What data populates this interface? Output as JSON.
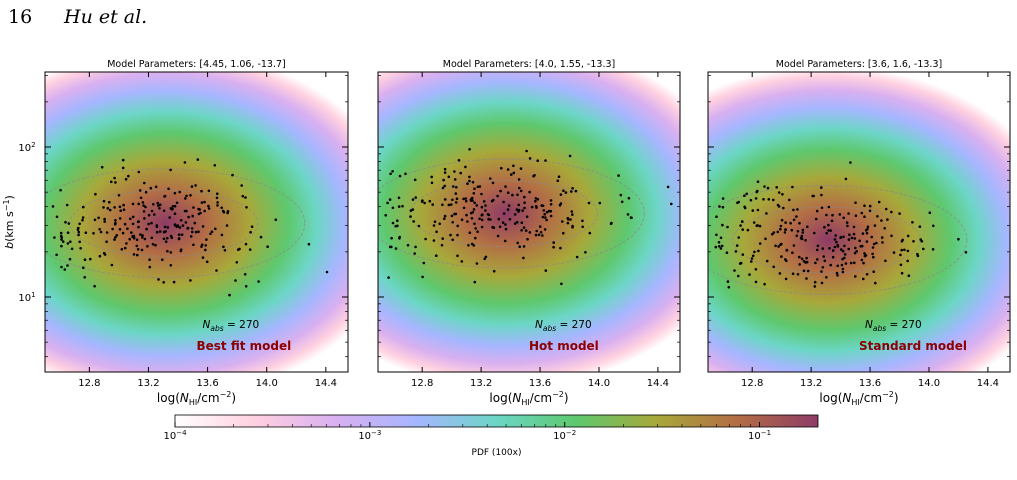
{
  "page": {
    "number": "16",
    "authors": "Hu et al."
  },
  "colorbar": {
    "label": "PDF (100x)",
    "ticks": [
      {
        "base": "10",
        "exp": "−4",
        "value": -4
      },
      {
        "base": "10",
        "exp": "−3",
        "value": -3
      },
      {
        "base": "10",
        "exp": "−2",
        "value": -2
      },
      {
        "base": "10",
        "exp": "−1",
        "value": -1
      }
    ],
    "log_range": [
      -4,
      -0.7
    ],
    "colors": [
      "#ffffff",
      "#ffd0e0",
      "#d9b0f0",
      "#a6b6ff",
      "#6cd6c6",
      "#5ec86e",
      "#a8a83a",
      "#b36d45",
      "#8e3c66"
    ]
  },
  "chart_data": [
    {
      "type": "scatter",
      "title": "Model Parameters: [4.45, 1.06, -13.7]",
      "model_label": "Best fit model",
      "nabs_label": "N_abs = 270",
      "xlabel": "log(N_HI/cm^-2)",
      "ylabel": "b(km s^-1)",
      "xlim": [
        12.5,
        14.55
      ],
      "ylim_log": [
        0.5,
        2.5
      ],
      "xticks": [
        "12.8",
        "13.2",
        "13.6",
        "14.0",
        "14.4"
      ],
      "yticks": [
        "10^1",
        "10^2"
      ],
      "density_center": [
        13.25,
        31
      ],
      "density_peak_b": 31,
      "n_points": 270,
      "seed": 11
    },
    {
      "type": "scatter",
      "title": "Model Parameters: [4.0, 1.55, -13.3]",
      "model_label": "Hot model",
      "nabs_label": "N_abs = 270",
      "xlabel": "log(N_HI/cm^-2)",
      "ylabel": "",
      "xlim": [
        12.5,
        14.55
      ],
      "ylim_log": [
        0.5,
        2.5
      ],
      "xticks": [
        "12.8",
        "13.2",
        "13.6",
        "14.0",
        "14.4"
      ],
      "yticks": [],
      "density_center": [
        13.3,
        36
      ],
      "density_peak_b": 36,
      "n_points": 270,
      "seed": 23
    },
    {
      "type": "scatter",
      "title": "Model Parameters: [3.6, 1.6, -13.3]",
      "model_label": "Standard model",
      "nabs_label": "N_abs = 270",
      "xlabel": "log(N_HI/cm^-2)",
      "ylabel": "",
      "xlim": [
        12.5,
        14.55
      ],
      "ylim_log": [
        0.5,
        2.5
      ],
      "xticks": [
        "12.8",
        "13.2",
        "13.6",
        "14.0",
        "14.4"
      ],
      "yticks": [],
      "density_center": [
        13.25,
        24
      ],
      "density_peak_b": 24,
      "n_points": 270,
      "seed": 37
    }
  ]
}
